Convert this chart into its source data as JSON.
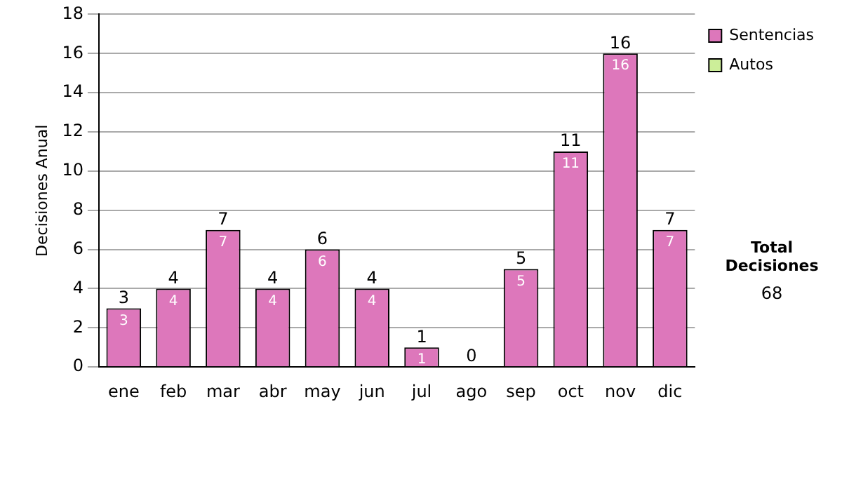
{
  "chart_data": {
    "type": "bar",
    "ylabel": "Decisiones Anual",
    "categories": [
      "ene",
      "feb",
      "mar",
      "abr",
      "may",
      "jun",
      "jul",
      "ago",
      "sep",
      "oct",
      "nov",
      "dic"
    ],
    "series": [
      {
        "name": "Sentencias",
        "color": "#dd77bb",
        "values": [
          3,
          4,
          7,
          4,
          6,
          4,
          1,
          0,
          5,
          11,
          16,
          7
        ],
        "value_labels": [
          "3",
          "4",
          "7",
          "4",
          "6",
          "4",
          "1",
          null,
          "5",
          "11",
          "16",
          "7"
        ]
      },
      {
        "name": "Autos",
        "color": "#ccee99",
        "values": [
          0,
          0,
          0,
          0,
          0,
          0,
          0,
          0,
          0,
          0,
          0,
          0
        ]
      }
    ],
    "stacked": true,
    "totals": [
      "3",
      "4",
      "7",
      "4",
      "6",
      "4",
      "1",
      "0",
      "5",
      "11",
      "16",
      "7"
    ],
    "ylim": [
      0,
      18
    ],
    "yticks": [
      0,
      2,
      4,
      6,
      8,
      10,
      12,
      14,
      16,
      18
    ],
    "grid": "y",
    "legend": "right",
    "annotations": [
      "Total Decisiones",
      "68"
    ]
  }
}
